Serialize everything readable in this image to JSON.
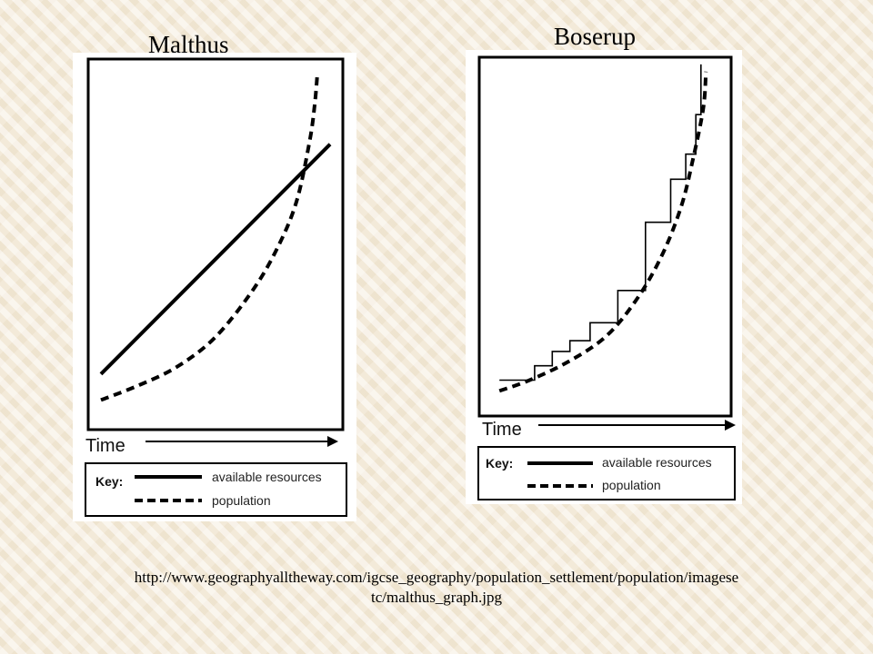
{
  "charts": {
    "malthus": {
      "title": "Malthus",
      "xlabel": "Time",
      "key_label": "Key:",
      "legend": [
        "available resources",
        "population"
      ]
    },
    "boserup": {
      "title": "Boserup",
      "xlabel": "Time",
      "key_label": "Key:",
      "legend": [
        "available resources",
        "population"
      ]
    }
  },
  "caption": {
    "line1": "http://www.geographyalltheway.com/igcse_geography/population_settlement/population/imagese",
    "line2": "tc/malthus_graph.jpg"
  },
  "chart_data": [
    {
      "type": "line",
      "title": "Malthus",
      "xlabel": "Time",
      "ylabel": "",
      "xlim": [
        0,
        100
      ],
      "ylim": [
        0,
        100
      ],
      "series": [
        {
          "name": "available resources",
          "style": "solid",
          "x": [
            5,
            95
          ],
          "y": [
            15,
            77
          ]
        },
        {
          "name": "population",
          "style": "dashed",
          "x": [
            5,
            20,
            35,
            50,
            65,
            75,
            82,
            87,
            89,
            90
          ],
          "y": [
            8,
            12,
            17,
            25,
            38,
            50,
            62,
            78,
            88,
            96
          ]
        }
      ]
    },
    {
      "type": "line",
      "title": "Boserup",
      "xlabel": "Time",
      "ylabel": "",
      "xlim": [
        0,
        100
      ],
      "ylim": [
        0,
        100
      ],
      "series": [
        {
          "name": "available resources",
          "style": "solid",
          "stepped": true,
          "x": [
            8,
            22,
            22,
            29,
            29,
            36,
            36,
            44,
            44,
            55,
            55,
            66,
            66,
            76,
            76,
            82,
            82,
            86,
            86,
            88,
            88
          ],
          "y": [
            10,
            10,
            14,
            14,
            18,
            18,
            21,
            21,
            26,
            26,
            35,
            35,
            54,
            54,
            66,
            66,
            73,
            73,
            84,
            84,
            98
          ]
        },
        {
          "name": "population",
          "style": "dashed",
          "x": [
            8,
            20,
            35,
            50,
            62,
            72,
            80,
            85,
            89,
            90
          ],
          "y": [
            7,
            10,
            15,
            22,
            32,
            44,
            58,
            72,
            86,
            96
          ]
        }
      ]
    }
  ]
}
